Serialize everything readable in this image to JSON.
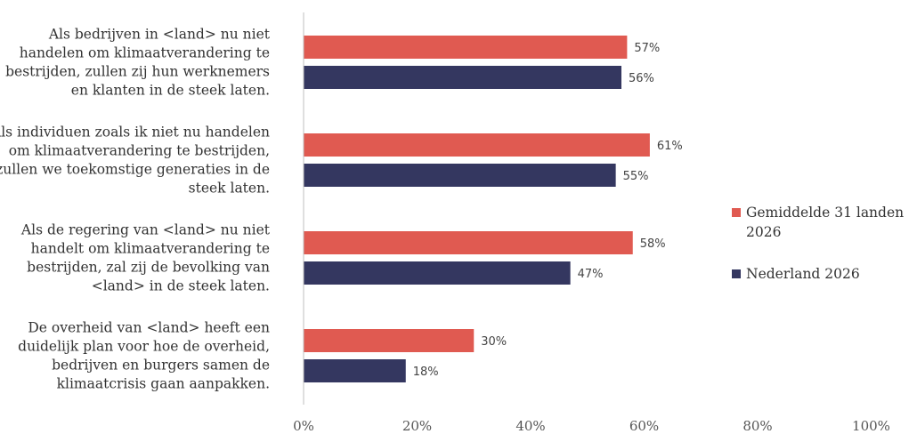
{
  "chart_data": {
    "type": "bar",
    "orientation": "horizontal",
    "categories": [
      [
        "Als bedrijven in <land> nu niet",
        "handelen om klimaatverandering te",
        "bestrijden, zullen zij hun werknemers",
        "en klanten in de steek laten."
      ],
      [
        "Als individuen zoals ik niet nu handelen",
        "om klimaatverandering te bestrijden,",
        "zullen we toekomstige generaties in de",
        "steek laten."
      ],
      [
        "Als de regering van <land> nu niet",
        "handelt om klimaatverandering te",
        "bestrijden, zal zij de bevolking van",
        "<land> in de steek laten."
      ],
      [
        "De overheid van <land> heeft een",
        "duidelijk plan voor hoe de overheid,",
        "bedrijven en burgers samen de",
        "klimaatcrisis gaan aanpakken."
      ]
    ],
    "series": [
      {
        "name": [
          "Gemiddelde 31 landen",
          "2026"
        ],
        "color": "#e05a51",
        "values": [
          57,
          61,
          58,
          30
        ],
        "labels": [
          "57%",
          "61%",
          "58%",
          "30%"
        ]
      },
      {
        "name": [
          "Nederland 2026"
        ],
        "color": "#343760",
        "values": [
          56,
          55,
          47,
          18
        ],
        "labels": [
          "56%",
          "55%",
          "47%",
          "18%"
        ]
      }
    ],
    "xlim": [
      0,
      100
    ],
    "xticks": [
      0,
      20,
      40,
      60,
      80,
      100
    ],
    "xtick_labels": [
      "0%",
      "20%",
      "40%",
      "60%",
      "80%",
      "100%"
    ],
    "legend_position": "right",
    "grid": false
  }
}
